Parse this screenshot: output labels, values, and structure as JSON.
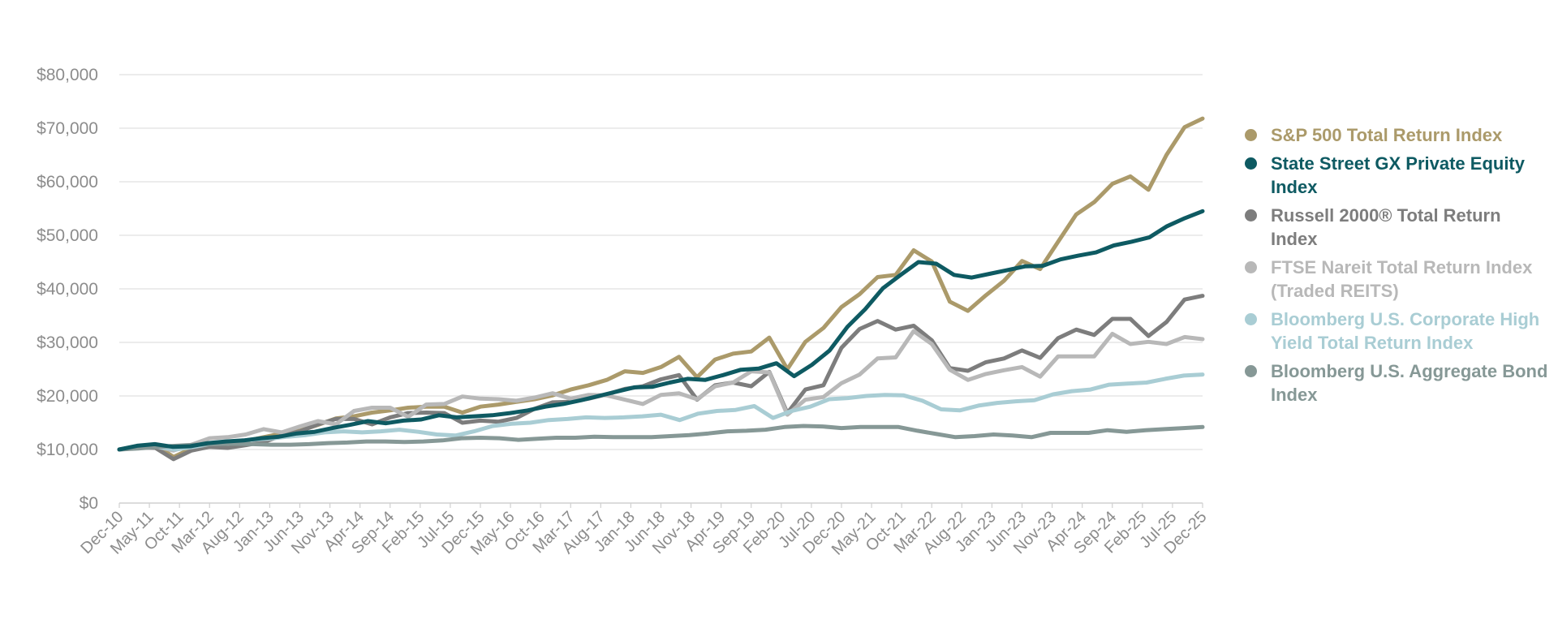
{
  "chart_data": {
    "type": "line",
    "title": "",
    "xlabel": "",
    "ylabel": "",
    "ylim": [
      0,
      80000
    ],
    "yticks": [
      "$0",
      "$10,000",
      "$20,000",
      "$30,000",
      "$40,000",
      "$50,000",
      "$60,000",
      "$70,000",
      "$80,000"
    ],
    "grid": true,
    "legend_position": "right",
    "x_tick_labels": [
      "Dec-10",
      "May-11",
      "Oct-11",
      "Mar-12",
      "Aug-12",
      "Jan-13",
      "Jun-13",
      "Nov-13",
      "Apr-14",
      "Sep-14",
      "Feb-15",
      "Jul-15",
      "Dec-15",
      "May-16",
      "Oct-16",
      "Mar-17",
      "Aug-17",
      "Jan-18",
      "Jun-18",
      "Nov-18",
      "Apr-19",
      "Sep-19",
      "Feb-20",
      "Jul-20",
      "Dec-20",
      "May-21",
      "Oct-21",
      "Mar-22",
      "Aug-22",
      "Jan-23",
      "Jun-23",
      "Nov-23",
      "Apr-24",
      "Sep-24",
      "Feb-25",
      "Jul-25",
      "Dec-25"
    ],
    "x_start": "Dec-10",
    "x_end": "Dec-25",
    "x_frequency": "quarterly",
    "series": [
      {
        "name": "S&P 500 Total Return Index",
        "color": "#ab9a6a",
        "values": [
          10000,
          10600,
          10900,
          8600,
          10200,
          10800,
          11300,
          11600,
          12300,
          13000,
          13500,
          14600,
          15800,
          16200,
          16900,
          17300,
          17800,
          18000,
          18000,
          16900,
          18000,
          18400,
          18900,
          19400,
          20100,
          21200,
          22000,
          23000,
          24600,
          24300,
          25400,
          27300,
          23500,
          26800,
          27900,
          28300,
          30900,
          25000,
          30100,
          32700,
          36600,
          39000,
          42200,
          42600,
          47200,
          45100,
          37600,
          35900,
          38800,
          41500,
          45200,
          43700,
          48800,
          53900,
          56200,
          59600,
          61000,
          58500,
          65000,
          70200,
          71800
        ]
      },
      {
        "name": "State Street GX Private Equity Index",
        "color": "#0e5a62",
        "values": [
          10000,
          10700,
          11000,
          10500,
          10600,
          11200,
          11500,
          11700,
          12100,
          12400,
          13000,
          13300,
          14000,
          14600,
          15300,
          14900,
          15400,
          15600,
          16400,
          16000,
          16200,
          16400,
          16800,
          17300,
          18000,
          18500,
          19200,
          20000,
          20800,
          21600,
          21700,
          22500,
          23200,
          23000,
          23900,
          24900,
          25100,
          26100,
          23700,
          25800,
          28500,
          32900,
          36200,
          40100,
          42600,
          45000,
          44700,
          42600,
          42100,
          42800,
          43500,
          44200,
          44300,
          45500,
          46200,
          46800,
          48100,
          48800,
          49600,
          51700,
          53200,
          54500
        ]
      },
      {
        "name": "Russell 2000® Total Return Index",
        "color": "#7d7d7d",
        "values": [
          10000,
          10400,
          10300,
          8200,
          9800,
          10500,
          10300,
          10800,
          11400,
          12600,
          13400,
          14700,
          15700,
          15700,
          14700,
          16000,
          16800,
          16900,
          16800,
          15000,
          15400,
          15200,
          15900,
          17600,
          18800,
          18900,
          19500,
          20300,
          21300,
          21800,
          23100,
          23900,
          19300,
          22000,
          22500,
          21800,
          24500,
          16800,
          21200,
          22000,
          29000,
          32500,
          34000,
          32400,
          33100,
          30400,
          25200,
          24700,
          26300,
          27000,
          28500,
          27100,
          30800,
          32400,
          31400,
          34400,
          34400,
          31200,
          33800,
          38000,
          38700
        ]
      },
      {
        "name": "FTSE Nareit Total  Return Index (Traded REITS)",
        "color": "#b8b8b8",
        "values": [
          10000,
          10500,
          10600,
          9800,
          10900,
          12100,
          12300,
          12800,
          13800,
          13200,
          14300,
          15300,
          14700,
          17200,
          17800,
          17800,
          16100,
          18400,
          18500,
          19900,
          19500,
          19400,
          19100,
          19700,
          20500,
          19500,
          20200,
          20100,
          19300,
          18500,
          20200,
          20500,
          19400,
          21800,
          22500,
          24600,
          24400,
          16500,
          19300,
          19800,
          22400,
          24000,
          27000,
          27200,
          32100,
          29700,
          24900,
          23000,
          24100,
          24800,
          25400,
          23600,
          27400,
          27400,
          27400,
          31600,
          29700,
          30100,
          29700,
          31000,
          30600
        ]
      },
      {
        "name": "Bloomberg U.S. Corporate High Yield Total Return Index",
        "color": "#a9cdd4",
        "values": [
          10000,
          10400,
          10500,
          10000,
          10500,
          11100,
          11400,
          11800,
          12000,
          12400,
          12700,
          13200,
          13400,
          13200,
          13400,
          13700,
          13300,
          12800,
          12600,
          13400,
          14400,
          14800,
          15000,
          15500,
          15700,
          16000,
          15900,
          16000,
          16200,
          16500,
          15500,
          16700,
          17200,
          17400,
          18100,
          15900,
          17200,
          18000,
          19400,
          19600,
          20000,
          20200,
          20100,
          19100,
          17500,
          17300,
          18200,
          18700,
          19000,
          19200,
          20300,
          20900,
          21200,
          22100,
          22300,
          22500,
          23200,
          23800,
          24000
        ]
      },
      {
        "name": "Bloomberg U.S. Aggregate Bond Index",
        "color": "#869896",
        "values": [
          10000,
          10200,
          10500,
          10700,
          10900,
          11000,
          11100,
          11000,
          10900,
          10900,
          11000,
          11200,
          11300,
          11500,
          11500,
          11400,
          11500,
          11700,
          12100,
          12200,
          12100,
          11800,
          12000,
          12200,
          12200,
          12400,
          12300,
          12300,
          12300,
          12500,
          12700,
          13000,
          13400,
          13500,
          13700,
          14200,
          14400,
          14300,
          14000,
          14200,
          14200,
          14200,
          13500,
          12900,
          12300,
          12500,
          12800,
          12600,
          12300,
          13100,
          13100,
          13100,
          13600,
          13300,
          13600,
          13800,
          14000,
          14200
        ]
      }
    ]
  }
}
